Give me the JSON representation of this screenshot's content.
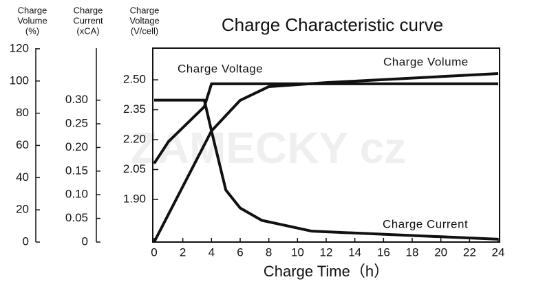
{
  "chart_data": {
    "type": "line",
    "title": "Charge Characteristic curve",
    "x_label": "Charge Time（h）",
    "watermark": "ZAMECKY cz",
    "xlim": [
      0,
      24
    ],
    "xticks": [
      0,
      2,
      4,
      6,
      8,
      10,
      12,
      14,
      16,
      18,
      20,
      22,
      24
    ],
    "axes": [
      {
        "label": [
          "Charge",
          "Volume",
          "(%)"
        ],
        "ylim": [
          0,
          120.4
        ],
        "yticks": [
          0,
          20,
          40,
          60,
          80,
          100,
          120
        ]
      },
      {
        "label": [
          "Charge",
          "Current",
          "(xCA)"
        ],
        "ylim": [
          0,
          0.41
        ],
        "yticks": [
          0,
          0.05,
          {
            "value": 0.1,
            "label": "0.10"
          },
          0.15,
          {
            "value": 0.2,
            "label": "0.20"
          },
          0.25,
          {
            "value": 0.3,
            "label": "0.30"
          }
        ]
      },
      {
        "label": [
          "Charge",
          "Voltage",
          "(V/cell)"
        ],
        "ylim": [
          1.686,
          2.659
        ],
        "yticks": [
          {
            "value": 1.9,
            "label": "1.90"
          },
          2.05,
          {
            "value": 2.2,
            "label": "2.20"
          },
          2.35,
          {
            "value": 2.5,
            "label": "2.50"
          }
        ]
      }
    ],
    "series": [
      {
        "name": "Charge Voltage",
        "axis": 2,
        "color": "#111111",
        "x": [
          0,
          1,
          3.5,
          4,
          24
        ],
        "values": [
          2.08,
          2.19,
          2.365,
          2.48,
          2.48
        ]
      },
      {
        "name": "Charge Volume",
        "axis": 0,
        "color": "#111111",
        "x": [
          0,
          4,
          6,
          8,
          12,
          24
        ],
        "values": [
          0,
          69,
          88,
          96.5,
          99,
          104.6
        ]
      },
      {
        "name": "Charge Current",
        "axis": 1,
        "color": "#111111",
        "x": [
          0,
          3.5,
          4,
          5,
          6,
          7.5,
          11,
          24
        ],
        "values": [
          0.3,
          0.3,
          0.235,
          0.11,
          0.072,
          0.046,
          0.023,
          0.006
        ]
      }
    ]
  }
}
